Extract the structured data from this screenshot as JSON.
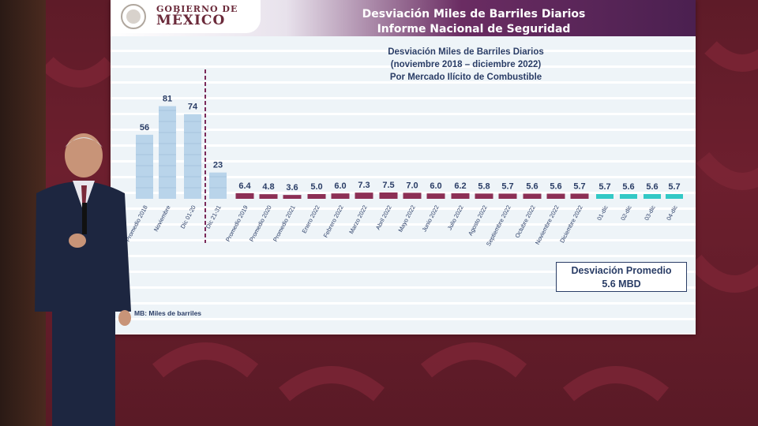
{
  "logo": {
    "line1": "GOBIERNO DE",
    "line2": "MÉXICO"
  },
  "header": {
    "title_line1": "Desviación Miles de Barriles Diarios",
    "title_line2": "Informe Nacional de Seguridad"
  },
  "chart_data": {
    "type": "bar",
    "title_lines": [
      "Desviación Miles de Barriles Diarios",
      "(noviembre 2018 – diciembre 2022)",
      "Por Mercado Ilícito de Combustible"
    ],
    "categories": [
      "Promedio 2018",
      "Noviembre",
      "Dic 01-20",
      "Dic 21-31",
      "Promedio 2019",
      "Promedio 2020",
      "Promedio 2021",
      "Enero 2022",
      "Febrero 2022",
      "Marzo 2022",
      "Abril 2022",
      "Mayo 2022",
      "Junio 2022",
      "Julio 2022",
      "Agosto 2022",
      "Septiembre 2022",
      "Octubre 2022",
      "Noviembre 2022",
      "Diciembre 2022",
      "01-dic",
      "02-dic",
      "03-dic",
      "04-dic"
    ],
    "value_labels": [
      "56",
      "81",
      "74",
      "23",
      "6.4",
      "4.8",
      "3.6",
      "5.0",
      "6.0",
      "7.3",
      "7.5",
      "7.0",
      "6.0",
      "6.2",
      "5.8",
      "5.7",
      "5.6",
      "5.6",
      "5.7",
      "5.7",
      "5.6",
      "5.6",
      "5.7"
    ],
    "values": [
      56,
      81,
      74,
      23,
      6.4,
      4.8,
      3.6,
      5.0,
      6.0,
      7.3,
      7.5,
      7.0,
      6.0,
      6.2,
      5.8,
      5.7,
      5.6,
      5.6,
      5.7,
      5.7,
      5.6,
      5.6,
      5.7
    ],
    "colors": {
      "early": "#b9d4ea",
      "monthly": "#8c2f55",
      "daily": "#33c9c6"
    },
    "footnote": "MB: Miles de barriles"
  },
  "summary": {
    "line1": "Desviación Promedio",
    "line2": "5.6 MBD"
  }
}
